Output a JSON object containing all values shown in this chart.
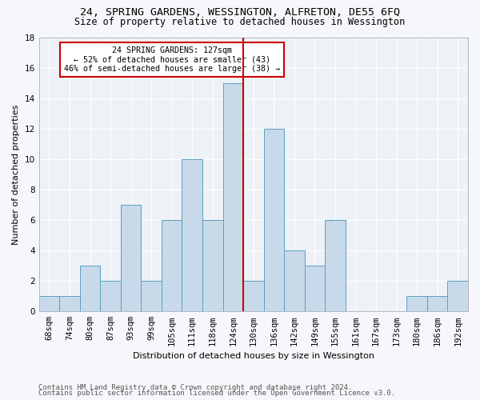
{
  "title1": "24, SPRING GARDENS, WESSINGTON, ALFRETON, DE55 6FQ",
  "title2": "Size of property relative to detached houses in Wessington",
  "xlabel": "Distribution of detached houses by size in Wessington",
  "ylabel": "Number of detached properties",
  "categories": [
    "68sqm",
    "74sqm",
    "80sqm",
    "87sqm",
    "93sqm",
    "99sqm",
    "105sqm",
    "111sqm",
    "118sqm",
    "124sqm",
    "130sqm",
    "136sqm",
    "142sqm",
    "149sqm",
    "155sqm",
    "161sqm",
    "167sqm",
    "173sqm",
    "180sqm",
    "186sqm",
    "192sqm"
  ],
  "values": [
    1,
    1,
    3,
    2,
    7,
    2,
    6,
    10,
    6,
    15,
    2,
    12,
    4,
    3,
    6,
    0,
    0,
    0,
    1,
    1,
    2
  ],
  "bar_color": "#c8daea",
  "bar_edge_color": "#5a9fc0",
  "bar_edge_width": 0.7,
  "property_bin_index": 9,
  "vline_color": "#cc0000",
  "annotation_text": "24 SPRING GARDENS: 127sqm\n← 52% of detached houses are smaller (43)\n46% of semi-detached houses are larger (38) →",
  "annotation_box_color": "#ffffff",
  "annotation_box_edge_color": "#cc0000",
  "ylim": [
    0,
    18
  ],
  "yticks": [
    0,
    2,
    4,
    6,
    8,
    10,
    12,
    14,
    16,
    18
  ],
  "background_color": "#eef2f7",
  "grid_color": "#ffffff",
  "footer1": "Contains HM Land Registry data © Crown copyright and database right 2024.",
  "footer2": "Contains public sector information licensed under the Open Government Licence v3.0.",
  "title1_fontsize": 9.5,
  "title2_fontsize": 8.5,
  "xlabel_fontsize": 8,
  "ylabel_fontsize": 8,
  "tick_fontsize": 7.5,
  "footer_fontsize": 6.5
}
